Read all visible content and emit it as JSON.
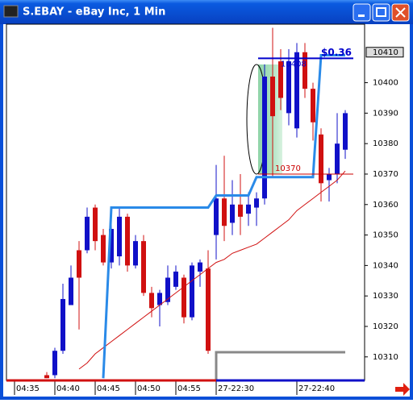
{
  "window_title": "S.EBAY - eBay Inc, 1 Min",
  "chart_data": {
    "type": "candlestick",
    "open": [
      10304,
      10304,
      10312,
      10327,
      10345,
      10345,
      10359,
      10350,
      10341,
      10343,
      10356,
      10340,
      10348,
      10331,
      10327,
      10328,
      10333,
      10336,
      10323,
      10338,
      10339,
      10350,
      10362,
      10354,
      10360,
      10357,
      10359,
      10362,
      10402,
      10407,
      10390,
      10385,
      10410,
      10398,
      10383,
      10368,
      10370,
      10378
    ],
    "high": [
      10305,
      10313,
      10334,
      10340,
      10348,
      10359,
      10360,
      10352,
      10355,
      10359,
      10357,
      10350,
      10350,
      10333,
      10332,
      10340,
      10340,
      10337,
      10341,
      10342,
      10345,
      10373,
      10376,
      10368,
      10370,
      10364,
      10364,
      10406,
      10418,
      10411,
      10411,
      10413,
      10413,
      10400,
      10385,
      10372,
      10390,
      10391
    ],
    "low": [
      10303,
      10303,
      10311,
      10327,
      10319,
      10344,
      10345,
      10340,
      10339,
      10340,
      10338,
      10339,
      10330,
      10323,
      10320,
      10327,
      10332,
      10321,
      10322,
      10333,
      10311,
      10342,
      10348,
      10350,
      10350,
      10353,
      10353,
      10360,
      10369,
      10391,
      10386,
      10382,
      10395,
      10381,
      10361,
      10361,
      10367,
      10375
    ],
    "close": [
      10303,
      10312,
      10329,
      10336,
      10336,
      10356,
      10348,
      10341,
      10352,
      10356,
      10340,
      10348,
      10331,
      10326,
      10331,
      10336,
      10338,
      10323,
      10340,
      10341,
      10312,
      10362,
      10353,
      10360,
      10356,
      10360,
      10362,
      10402,
      10389,
      10395,
      10407,
      10410,
      10398,
      10387,
      10367,
      10370,
      10380,
      10390
    ],
    "up_color": "#1010c8",
    "down_color": "#d01010",
    "series": [
      {
        "color": "#d01010",
        "values": [
          null,
          null,
          null,
          null,
          10306,
          10308,
          10311,
          10313,
          10315,
          10317,
          10319,
          10321,
          10323,
          10325,
          10327,
          10329,
          10331,
          10333,
          10335,
          10337,
          10339,
          10341,
          10342,
          10344,
          10345,
          10346,
          10347,
          10349,
          10351,
          10353,
          10355,
          10358,
          10360,
          10362,
          10364,
          10366,
          10368,
          10371
        ]
      },
      {
        "color": "#2a8ae8",
        "values": [
          null,
          null,
          null,
          null,
          null,
          null,
          null,
          10303,
          10359,
          10359,
          10359,
          10359,
          10359,
          10359,
          10359,
          10359,
          10359,
          10359,
          10359,
          10359,
          10359,
          10363,
          10363,
          10363,
          10363,
          10363,
          10369,
          10369,
          10369,
          10369,
          10369,
          10369,
          10369,
          10369,
          10409,
          10409,
          10409,
          10409
        ]
      }
    ],
    "levels": [
      {
        "value": 10408,
        "color": "#0000cc"
      },
      {
        "value": 10370,
        "color": "#cc0000"
      }
    ],
    "annotation": "$0.36",
    "last_price": 10410,
    "xlim": [
      -5,
      39.4
    ],
    "xticks": [
      {
        "value": -4,
        "label": "04:35"
      },
      {
        "value": 1,
        "label": "04:40"
      },
      {
        "value": 6,
        "label": "04:45"
      },
      {
        "value": 11,
        "label": "04:50"
      },
      {
        "value": 16,
        "label": "04:55"
      },
      {
        "value": 21,
        "label": "27-22:30"
      },
      {
        "value": 31,
        "label": "27-22:40"
      }
    ],
    "ylim": [
      10302.8,
      10419.2
    ],
    "yticks": [
      10310,
      10320,
      10330,
      10340,
      10350,
      10360,
      10370,
      10380,
      10390,
      10400
    ]
  }
}
